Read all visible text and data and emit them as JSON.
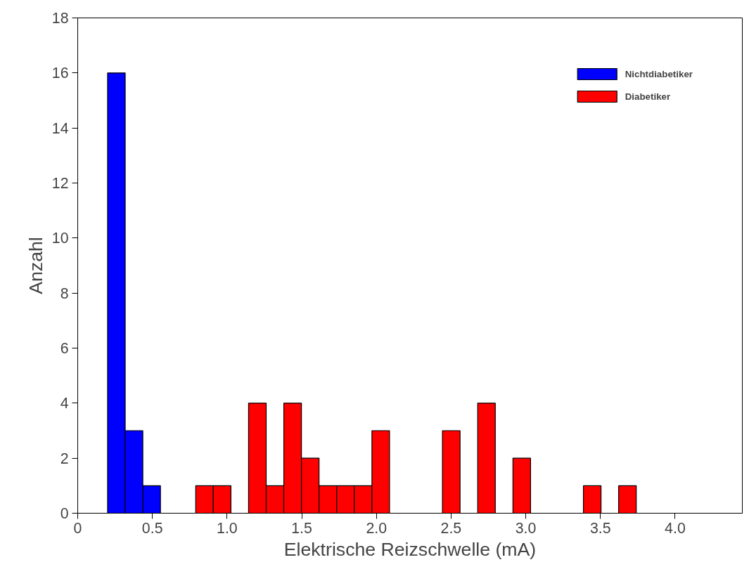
{
  "chart_data": {
    "type": "histogram",
    "xlabel": "Elektrische Reizschwelle (mA)",
    "ylabel": "Anzahl",
    "bins": [
      0.2,
      0.318,
      0.436,
      0.554,
      0.672,
      0.79,
      0.908,
      1.026,
      1.144,
      1.262,
      1.38,
      1.498,
      1.616,
      1.734,
      1.852,
      1.97,
      2.088,
      2.206,
      2.324,
      2.442,
      2.56,
      2.678,
      2.796,
      2.914,
      3.032,
      3.15,
      3.268,
      3.386,
      3.504,
      3.622,
      3.74
    ],
    "series": [
      {
        "name": "Nichtdiabetiker",
        "color": "#0000ff",
        "values": [
          16,
          3,
          1,
          0,
          0,
          0,
          0,
          0,
          0,
          0,
          0,
          0,
          0,
          0,
          0,
          0,
          0,
          0,
          0,
          0,
          0,
          0,
          0,
          0,
          0,
          0,
          0,
          0,
          0,
          0
        ]
      },
      {
        "name": "Diabetiker",
        "color": "#ff0000",
        "values": [
          0,
          0,
          0,
          0,
          0,
          1,
          1,
          0,
          4,
          1,
          4,
          2,
          1,
          1,
          1,
          3,
          0,
          0,
          0,
          3,
          0,
          4,
          0,
          2,
          0,
          0,
          0,
          1,
          0,
          1
        ]
      }
    ],
    "xlim": [
      0,
      4.45
    ],
    "ylim": [
      0,
      18
    ],
    "xticks": [
      0,
      0.5,
      {
        "value": 1,
        "label": "1.0"
      },
      1.5,
      {
        "value": 2,
        "label": "2.0"
      },
      2.5,
      {
        "value": 3,
        "label": "3.0"
      },
      3.5,
      {
        "value": 4,
        "label": "4.0"
      }
    ],
    "yticks": [
      0,
      2,
      4,
      6,
      8,
      10,
      12,
      14,
      16,
      18
    ],
    "grid": false,
    "legend": "top right"
  }
}
